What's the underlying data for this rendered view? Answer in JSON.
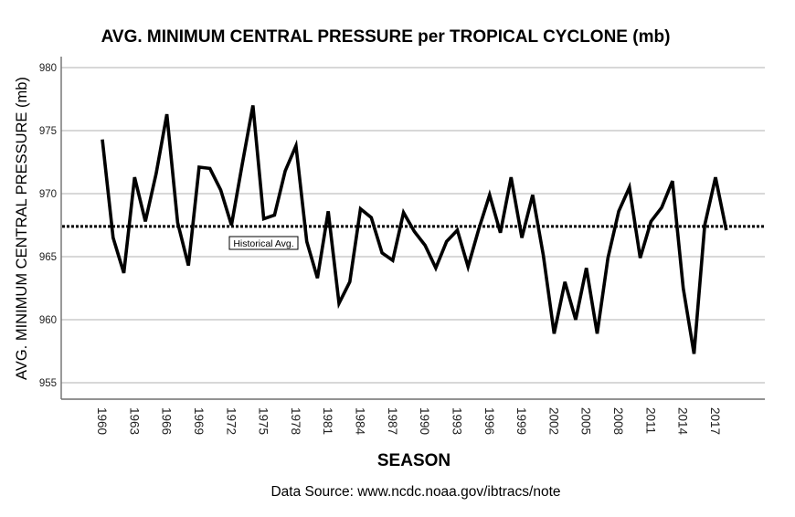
{
  "chart_data": {
    "type": "line",
    "title": "AVG. MINIMUM CENTRAL PRESSURE per TROPICAL CYCLONE (mb)",
    "xlabel": "SEASON",
    "ylabel": "AVG. MINIMUM CENTRAL PRESSURE (mb)",
    "source_note": "Data Source: www.ncdc.noaa.gov/ibtracs/note",
    "ylim": [
      953.7,
      980.6
    ],
    "xlim": [
      1959,
      2023.5
    ],
    "grid": true,
    "yticks": [
      955,
      960,
      965,
      970,
      975,
      980
    ],
    "xticks": [
      1960,
      1963,
      1966,
      1969,
      1972,
      1975,
      1978,
      1981,
      1984,
      1987,
      1990,
      1993,
      1996,
      1999,
      2002,
      2005,
      2008,
      2011,
      2014,
      2017
    ],
    "x": [
      1960,
      1961,
      1962,
      1963,
      1964,
      1965,
      1966,
      1967,
      1968,
      1969,
      1970,
      1971,
      1972,
      1973,
      1974,
      1975,
      1976,
      1977,
      1978,
      1979,
      1980,
      1981,
      1982,
      1983,
      1984,
      1985,
      1986,
      1987,
      1988,
      1989,
      1990,
      1991,
      1992,
      1993,
      1994,
      1995,
      1996,
      1997,
      1998,
      1999,
      2000,
      2001,
      2002,
      2003,
      2004,
      2005,
      2006,
      2007,
      2008,
      2009,
      2010,
      2011,
      2012,
      2013,
      2014,
      2015,
      2016,
      2017,
      2018
    ],
    "series": [
      {
        "name": "Avg. Minimum Central Pressure",
        "color": "#000000",
        "values": [
          974.3,
          966.5,
          963.7,
          971.3,
          967.8,
          971.6,
          976.3,
          967.7,
          964.3,
          972.1,
          972.0,
          970.3,
          967.5,
          972.3,
          977.0,
          968.0,
          968.3,
          971.8,
          973.8,
          966.2,
          963.3,
          968.6,
          961.3,
          963.0,
          968.8,
          968.1,
          965.3,
          964.7,
          968.5,
          967.0,
          965.9,
          964.1,
          966.2,
          967.1,
          964.2,
          967.2,
          969.9,
          966.9,
          971.3,
          966.5,
          969.9,
          965.1,
          958.9,
          963.0,
          960.0,
          964.1,
          958.9,
          964.9,
          968.6,
          970.5,
          964.9,
          967.8,
          968.9,
          971.0,
          962.5,
          957.3,
          967.5,
          971.3,
          967.1
        ]
      }
    ],
    "reference_line": {
      "label": "Historical Avg.",
      "value": 967.4,
      "style": "dotted"
    }
  }
}
